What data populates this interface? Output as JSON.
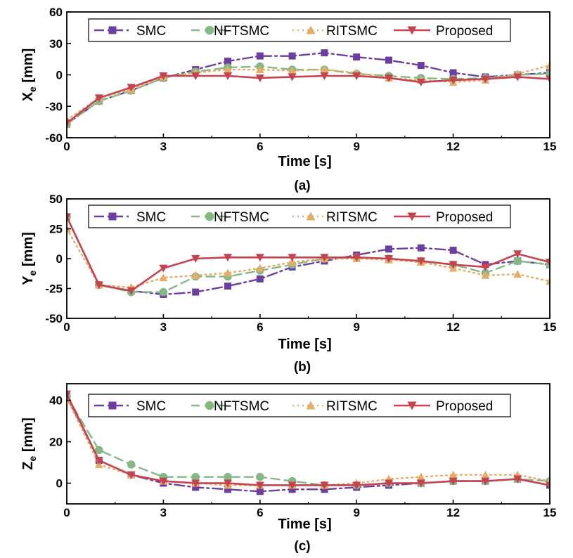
{
  "chart_data": [
    {
      "type": "line",
      "panel_caption": "(a)",
      "ylabel": "X",
      "ylabel_sub": "e",
      "ylabel_unit": " [mm]",
      "xlabel": "Time [s]",
      "xlim": [
        0,
        15
      ],
      "ylim": [
        -60,
        60
      ],
      "xticks": [
        "0",
        "3",
        "6",
        "9",
        "12",
        "15"
      ],
      "yticks": [
        "-60",
        "-30",
        "0",
        "30",
        "60"
      ],
      "x": [
        0,
        1,
        2,
        3,
        4,
        5,
        6,
        7,
        8,
        9,
        10,
        11,
        12,
        13,
        14,
        15
      ],
      "series": [
        {
          "name": "SMC",
          "values": [
            -47,
            -25,
            -15,
            -3,
            5,
            13,
            18,
            18,
            21,
            17,
            14,
            9,
            2,
            -2,
            0,
            2
          ]
        },
        {
          "name": "NFTSMC",
          "values": [
            -47,
            -25,
            -15,
            -3,
            3,
            7,
            8,
            5,
            5,
            1,
            -1,
            -3,
            -4,
            -3,
            0,
            1
          ]
        },
        {
          "name": "RITSMC",
          "values": [
            -43,
            -22,
            -14,
            -2,
            2,
            5,
            5,
            4,
            5,
            2,
            -3,
            -5,
            -7,
            -5,
            1,
            9
          ]
        },
        {
          "name": "Proposed",
          "values": [
            -46,
            -22,
            -12,
            -1,
            -1,
            -1,
            -3,
            -2,
            -1,
            -1,
            -3,
            -7,
            -5,
            -4,
            -2,
            -4
          ]
        }
      ],
      "legend": [
        "SMC",
        "NFTSMC",
        "RITSMC",
        "Proposed"
      ]
    },
    {
      "type": "line",
      "panel_caption": "(b)",
      "ylabel": "Y",
      "ylabel_sub": "e",
      "ylabel_unit": " [mm]",
      "xlabel": "Time [s]",
      "xlim": [
        0,
        15
      ],
      "ylim": [
        -50,
        50
      ],
      "xticks": [
        "0",
        "3",
        "6",
        "9",
        "12",
        "15"
      ],
      "yticks": [
        "-50",
        "-25",
        "0",
        "25",
        "50"
      ],
      "x": [
        0,
        1,
        2,
        3,
        4,
        5,
        6,
        7,
        8,
        9,
        10,
        11,
        12,
        13,
        14,
        15
      ],
      "series": [
        {
          "name": "SMC",
          "values": [
            35,
            -22,
            -27,
            -30,
            -28,
            -23,
            -17,
            -7,
            -2,
            3,
            8,
            9,
            7,
            -5,
            -2,
            -5
          ]
        },
        {
          "name": "NFTSMC",
          "values": [
            35,
            -22,
            -28,
            -28,
            -15,
            -15,
            -10,
            -5,
            0,
            1,
            0,
            -2,
            -5,
            -12,
            -2,
            -5
          ]
        },
        {
          "name": "RITSMC",
          "values": [
            25,
            -22,
            -24,
            -16,
            -14,
            -12,
            -8,
            -3,
            0,
            0,
            -1,
            -3,
            -8,
            -14,
            -13,
            -19
          ]
        },
        {
          "name": "Proposed",
          "values": [
            35,
            -22,
            -27,
            -8,
            0,
            1,
            1,
            1,
            1,
            1,
            0,
            -2,
            -5,
            -7,
            4,
            -3
          ]
        }
      ],
      "legend": [
        "SMC",
        "NFTSMC",
        "RITSMC",
        "Proposed"
      ]
    },
    {
      "type": "line",
      "panel_caption": "(c)",
      "ylabel": "Z",
      "ylabel_sub": "e",
      "ylabel_unit": " [mm]",
      "xlabel": "Time [s]",
      "xlim": [
        0,
        15
      ],
      "ylim": [
        -10,
        48
      ],
      "xticks": [
        "0",
        "3",
        "6",
        "9",
        "12",
        "15"
      ],
      "yticks": [
        "0",
        "20",
        "40"
      ],
      "x": [
        0,
        1,
        2,
        3,
        4,
        5,
        6,
        7,
        8,
        9,
        10,
        11,
        12,
        13,
        14,
        15
      ],
      "series": [
        {
          "name": "SMC",
          "values": [
            42,
            11,
            4,
            0,
            -2,
            -3,
            -4,
            -3,
            -3,
            -2,
            -1,
            0,
            1,
            1,
            2,
            -1
          ]
        },
        {
          "name": "NFTSMC",
          "values": [
            42,
            16,
            9,
            3,
            3,
            3,
            3,
            1,
            -1,
            -1,
            0,
            0,
            1,
            1,
            2,
            1
          ]
        },
        {
          "name": "RITSMC",
          "values": [
            41,
            9,
            4,
            1,
            0,
            -1,
            -1,
            -1,
            -1,
            0,
            2,
            3,
            4,
            4,
            4,
            1
          ]
        },
        {
          "name": "Proposed",
          "values": [
            43,
            11,
            4,
            1,
            0,
            0,
            -1,
            -1,
            -1,
            -1,
            0,
            0,
            1,
            1,
            2,
            -1
          ]
        }
      ],
      "legend": [
        "SMC",
        "NFTSMC",
        "RITSMC",
        "Proposed"
      ]
    }
  ],
  "styles": {
    "SMC": {
      "color": "#6b3fa0",
      "marker": "square",
      "dash": "14,5,3,5"
    },
    "NFTSMC": {
      "color": "#86b886",
      "marker": "circle",
      "dash": "12,7"
    },
    "RITSMC": {
      "color": "#e5ad68",
      "marker": "triangle-up",
      "dash": "2,5"
    },
    "Proposed": {
      "color": "#c4434e",
      "marker": "triangle-down",
      "dash": ""
    }
  }
}
